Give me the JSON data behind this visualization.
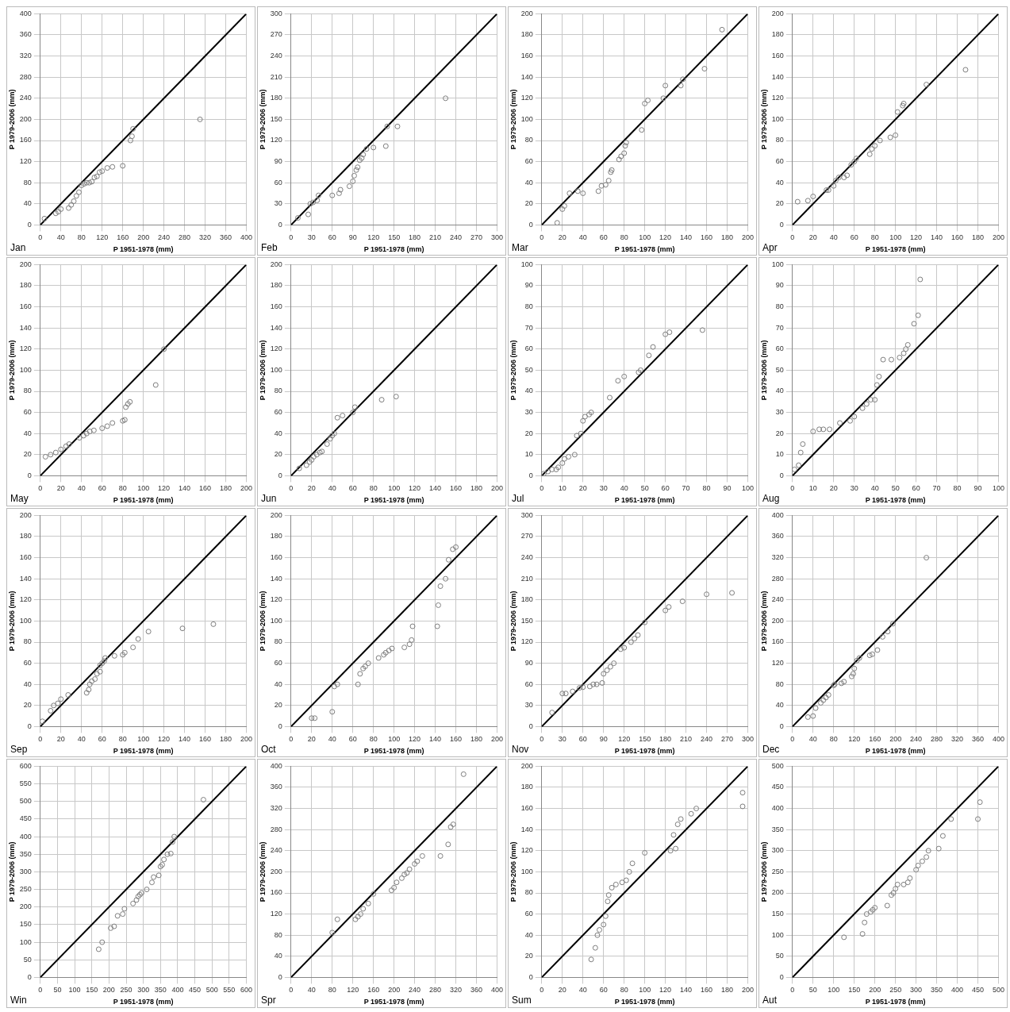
{
  "chart_data": [
    {
      "type": "scatter",
      "annotations": [
        "Jan"
      ],
      "xlabel": "P 1951-1978 (mm)",
      "ylabel": "P 1979-2006 (mm)",
      "xlim": [
        0,
        400
      ],
      "ylim": [
        0,
        400
      ],
      "xticks": [
        0,
        40,
        80,
        120,
        160,
        200,
        240,
        280,
        320,
        360,
        400
      ],
      "yticks": [
        0,
        40,
        80,
        120,
        160,
        200,
        240,
        280,
        320,
        360,
        400
      ],
      "grid": true,
      "marker": "circle",
      "series": [
        {
          "color": "#7f7f7f",
          "x": [
            8,
            30,
            35,
            40,
            55,
            60,
            65,
            70,
            75,
            80,
            85,
            90,
            95,
            100,
            105,
            110,
            115,
            120,
            130,
            140,
            160,
            175,
            178,
            180,
            310
          ],
          "values": [
            12,
            22,
            25,
            30,
            32,
            38,
            45,
            55,
            62,
            75,
            78,
            80,
            80,
            82,
            90,
            92,
            100,
            102,
            108,
            110,
            112,
            160,
            168,
            182,
            200
          ]
        },
        {
          "type": "line",
          "marker": "none",
          "color": "#000000",
          "x": [
            0,
            400
          ],
          "values": [
            0,
            400
          ]
        }
      ]
    },
    {
      "type": "scatter",
      "annotations": [
        "Feb"
      ],
      "xlabel": "P 1951-1978 (mm)",
      "ylabel": "P 1979-2006 (mm)",
      "xlim": [
        0,
        300
      ],
      "ylim": [
        0,
        300
      ],
      "xticks": [
        0,
        30,
        60,
        90,
        120,
        150,
        180,
        210,
        240,
        270,
        300
      ],
      "yticks": [
        0,
        30,
        60,
        90,
        120,
        150,
        180,
        210,
        240,
        270,
        300
      ],
      "grid": true,
      "marker": "circle",
      "series": [
        {
          "color": "#7f7f7f",
          "x": [
            10,
            25,
            28,
            32,
            38,
            40,
            60,
            70,
            72,
            85,
            90,
            92,
            95,
            97,
            100,
            103,
            105,
            110,
            120,
            138,
            140,
            155,
            225
          ],
          "values": [
            10,
            15,
            30,
            32,
            35,
            42,
            42,
            45,
            50,
            55,
            62,
            70,
            78,
            82,
            92,
            95,
            100,
            108,
            110,
            112,
            140,
            140,
            180
          ]
        },
        {
          "type": "line",
          "marker": "none",
          "color": "#000000",
          "x": [
            0,
            300
          ],
          "values": [
            0,
            300
          ]
        }
      ]
    },
    {
      "type": "scatter",
      "annotations": [
        "Mar"
      ],
      "xlabel": "P 1951-1978 (mm)",
      "ylabel": "P 1979-2006 (mm)",
      "xlim": [
        0,
        200
      ],
      "ylim": [
        0,
        200
      ],
      "xticks": [
        0,
        20,
        40,
        60,
        80,
        100,
        120,
        140,
        160,
        180,
        200
      ],
      "yticks": [
        0,
        20,
        40,
        60,
        80,
        100,
        120,
        140,
        160,
        180,
        200
      ],
      "grid": true,
      "marker": "circle",
      "series": [
        {
          "color": "#7f7f7f",
          "x": [
            15,
            20,
            22,
            27,
            35,
            40,
            55,
            58,
            62,
            65,
            67,
            68,
            75,
            77,
            80,
            81,
            82,
            97,
            100,
            103,
            118,
            120,
            135,
            137,
            158,
            175
          ],
          "values": [
            2,
            15,
            18,
            30,
            32,
            30,
            32,
            37,
            38,
            42,
            50,
            52,
            62,
            65,
            68,
            75,
            78,
            90,
            115,
            118,
            120,
            132,
            132,
            138,
            148,
            185
          ]
        },
        {
          "type": "line",
          "marker": "none",
          "color": "#000000",
          "x": [
            0,
            200
          ],
          "values": [
            0,
            200
          ]
        }
      ]
    },
    {
      "type": "scatter",
      "annotations": [
        "Apr"
      ],
      "xlabel": "P 1951-1978 (mm)",
      "ylabel": "P 1979-2006 (mm)",
      "xlim": [
        0,
        200
      ],
      "ylim": [
        0,
        200
      ],
      "xticks": [
        0,
        20,
        40,
        60,
        80,
        100,
        120,
        140,
        160,
        180,
        200
      ],
      "yticks": [
        0,
        20,
        40,
        60,
        80,
        100,
        120,
        140,
        160,
        180,
        200
      ],
      "grid": true,
      "marker": "circle",
      "series": [
        {
          "color": "#7f7f7f",
          "x": [
            5,
            15,
            20,
            33,
            35,
            40,
            42,
            45,
            50,
            53,
            57,
            60,
            62,
            75,
            77,
            80,
            85,
            95,
            100,
            102,
            107,
            108,
            130,
            168
          ],
          "values": [
            22,
            23,
            27,
            33,
            33,
            37,
            42,
            45,
            45,
            47,
            57,
            60,
            63,
            67,
            72,
            75,
            80,
            83,
            85,
            107,
            113,
            115,
            133,
            147
          ]
        },
        {
          "type": "line",
          "marker": "none",
          "color": "#000000",
          "x": [
            0,
            200
          ],
          "values": [
            0,
            200
          ]
        }
      ]
    },
    {
      "type": "scatter",
      "annotations": [
        "May"
      ],
      "xlabel": "P 1951-1978 (mm)",
      "ylabel": "P 1979-2006 (mm)",
      "xlim": [
        0,
        200
      ],
      "ylim": [
        0,
        200
      ],
      "xticks": [
        0,
        20,
        40,
        60,
        80,
        100,
        120,
        140,
        160,
        180,
        200
      ],
      "yticks": [
        0,
        20,
        40,
        60,
        80,
        100,
        120,
        140,
        160,
        180,
        200
      ],
      "grid": true,
      "marker": "circle",
      "series": [
        {
          "color": "#7f7f7f",
          "x": [
            5,
            10,
            15,
            20,
            25,
            28,
            38,
            42,
            45,
            48,
            52,
            60,
            65,
            70,
            80,
            82,
            83,
            85,
            87,
            112,
            120
          ],
          "values": [
            18,
            20,
            22,
            25,
            28,
            30,
            36,
            38,
            40,
            42,
            43,
            45,
            47,
            50,
            52,
            53,
            65,
            68,
            70,
            86,
            120
          ]
        },
        {
          "type": "line",
          "marker": "none",
          "color": "#000000",
          "x": [
            0,
            200
          ],
          "values": [
            0,
            200
          ]
        }
      ]
    },
    {
      "type": "scatter",
      "annotations": [
        "Jun"
      ],
      "xlabel": "P 1951-1978 (mm)",
      "ylabel": "P 1979-2006 (mm)",
      "xlim": [
        0,
        200
      ],
      "ylim": [
        0,
        200
      ],
      "xticks": [
        0,
        20,
        40,
        60,
        80,
        100,
        120,
        140,
        160,
        180,
        200
      ],
      "yticks": [
        0,
        20,
        40,
        60,
        80,
        100,
        120,
        140,
        160,
        180,
        200
      ],
      "grid": true,
      "marker": "circle",
      "series": [
        {
          "color": "#7f7f7f",
          "x": [
            8,
            15,
            18,
            20,
            22,
            25,
            28,
            30,
            35,
            38,
            40,
            42,
            45,
            50,
            60,
            62,
            88,
            102
          ],
          "values": [
            7,
            10,
            13,
            15,
            18,
            20,
            22,
            23,
            30,
            35,
            38,
            40,
            55,
            57,
            60,
            65,
            72,
            75
          ]
        },
        {
          "type": "line",
          "marker": "none",
          "color": "#000000",
          "x": [
            0,
            200
          ],
          "values": [
            0,
            200
          ]
        }
      ]
    },
    {
      "type": "scatter",
      "annotations": [
        "Jul"
      ],
      "xlabel": "P 1951-1978 (mm)",
      "ylabel": "P 1979-2006 (mm)",
      "xlim": [
        0,
        100
      ],
      "ylim": [
        0,
        100
      ],
      "xticks": [
        0,
        10,
        20,
        30,
        40,
        50,
        60,
        70,
        80,
        90,
        100
      ],
      "yticks": [
        0,
        10,
        20,
        30,
        40,
        50,
        60,
        70,
        80,
        90,
        100
      ],
      "grid": true,
      "marker": "circle",
      "series": [
        {
          "color": "#7f7f7f",
          "x": [
            1,
            3,
            5,
            7,
            8,
            10,
            11,
            13,
            16,
            17,
            19,
            20,
            21,
            23,
            24,
            33,
            37,
            40,
            47,
            48,
            52,
            54,
            60,
            62,
            78
          ],
          "values": [
            1,
            2,
            3,
            3,
            4,
            6,
            8,
            9,
            10,
            19,
            20,
            26,
            28,
            29,
            30,
            37,
            45,
            47,
            49,
            50,
            57,
            61,
            67,
            68,
            69
          ]
        },
        {
          "type": "line",
          "marker": "none",
          "color": "#000000",
          "x": [
            0,
            100
          ],
          "values": [
            0,
            100
          ]
        }
      ]
    },
    {
      "type": "scatter",
      "annotations": [
        "Aug"
      ],
      "xlabel": "P 1951-1978 (mm)",
      "ylabel": "P 1979-2006 (mm)",
      "xlim": [
        0,
        100
      ],
      "ylim": [
        0,
        100
      ],
      "xticks": [
        0,
        10,
        20,
        30,
        40,
        50,
        60,
        70,
        80,
        90,
        100
      ],
      "yticks": [
        0,
        10,
        20,
        30,
        40,
        50,
        60,
        70,
        80,
        90,
        100
      ],
      "grid": true,
      "marker": "circle",
      "series": [
        {
          "color": "#7f7f7f",
          "x": [
            1,
            3,
            4,
            5,
            10,
            13,
            15,
            18,
            23,
            28,
            30,
            34,
            36,
            38,
            40,
            41,
            42,
            44,
            48,
            52,
            54,
            55,
            56,
            59,
            61,
            62
          ],
          "values": [
            3,
            5,
            11,
            15,
            21,
            22,
            22,
            22,
            25,
            26,
            28,
            32,
            34,
            36,
            36,
            43,
            47,
            55,
            55,
            56,
            58,
            60,
            62,
            72,
            76,
            93
          ]
        },
        {
          "type": "line",
          "marker": "none",
          "color": "#000000",
          "x": [
            0,
            100
          ],
          "values": [
            0,
            100
          ]
        }
      ]
    },
    {
      "type": "scatter",
      "annotations": [
        "Sep"
      ],
      "xlabel": "P 1951-1978 (mm)",
      "ylabel": "P 1979-2006 (mm)",
      "xlim": [
        0,
        200
      ],
      "ylim": [
        0,
        200
      ],
      "xticks": [
        0,
        20,
        40,
        60,
        80,
        100,
        120,
        140,
        160,
        180,
        200
      ],
      "yticks": [
        0,
        20,
        40,
        60,
        80,
        100,
        120,
        140,
        160,
        180,
        200
      ],
      "grid": true,
      "marker": "circle",
      "series": [
        {
          "color": "#7f7f7f",
          "x": [
            2,
            10,
            13,
            17,
            20,
            27,
            45,
            47,
            48,
            50,
            53,
            55,
            58,
            58,
            60,
            62,
            63,
            72,
            80,
            82,
            90,
            95,
            105,
            138,
            168
          ],
          "values": [
            5,
            15,
            20,
            22,
            26,
            30,
            32,
            35,
            40,
            43,
            45,
            50,
            52,
            58,
            60,
            62,
            65,
            67,
            68,
            70,
            75,
            83,
            90,
            93,
            97
          ]
        },
        {
          "type": "line",
          "marker": "none",
          "color": "#000000",
          "x": [
            0,
            200
          ],
          "values": [
            0,
            200
          ]
        }
      ]
    },
    {
      "type": "scatter",
      "annotations": [
        "Oct"
      ],
      "xlabel": "P 1951-1978 (mm)",
      "ylabel": "P 1979-2006 (mm)",
      "xlim": [
        0,
        200
      ],
      "ylim": [
        0,
        200
      ],
      "xticks": [
        0,
        20,
        40,
        60,
        80,
        100,
        120,
        140,
        160,
        180,
        200
      ],
      "yticks": [
        0,
        20,
        40,
        60,
        80,
        100,
        120,
        140,
        160,
        180,
        200
      ],
      "grid": true,
      "marker": "circle",
      "series": [
        {
          "color": "#7f7f7f",
          "x": [
            20,
            23,
            40,
            42,
            45,
            65,
            67,
            70,
            72,
            75,
            85,
            90,
            92,
            95,
            98,
            110,
            115,
            117,
            118,
            142,
            143,
            145,
            150,
            153,
            157,
            160
          ],
          "values": [
            8,
            8,
            14,
            38,
            40,
            40,
            50,
            55,
            57,
            60,
            65,
            68,
            70,
            72,
            74,
            75,
            78,
            82,
            95,
            95,
            115,
            133,
            140,
            158,
            168,
            170
          ]
        },
        {
          "type": "line",
          "marker": "none",
          "color": "#000000",
          "x": [
            0,
            200
          ],
          "values": [
            0,
            200
          ]
        }
      ]
    },
    {
      "type": "scatter",
      "annotations": [
        "Nov"
      ],
      "xlabel": "P 1951-1978 (mm)",
      "ylabel": "P 1979-2006 (mm)",
      "xlim": [
        0,
        300
      ],
      "ylim": [
        0,
        300
      ],
      "xticks": [
        0,
        30,
        60,
        90,
        120,
        150,
        180,
        210,
        240,
        270,
        300
      ],
      "yticks": [
        0,
        30,
        60,
        90,
        120,
        150,
        180,
        210,
        240,
        270,
        300
      ],
      "grid": true,
      "marker": "circle",
      "series": [
        {
          "color": "#7f7f7f",
          "x": [
            15,
            30,
            35,
            45,
            55,
            60,
            70,
            75,
            80,
            88,
            90,
            95,
            100,
            105,
            115,
            120,
            130,
            135,
            140,
            150,
            180,
            185,
            205,
            240,
            277
          ],
          "values": [
            20,
            47,
            47,
            50,
            55,
            56,
            57,
            60,
            60,
            62,
            75,
            80,
            85,
            90,
            110,
            112,
            120,
            125,
            130,
            148,
            165,
            170,
            178,
            188,
            190
          ]
        },
        {
          "type": "line",
          "marker": "none",
          "color": "#000000",
          "x": [
            0,
            300
          ],
          "values": [
            0,
            300
          ]
        }
      ]
    },
    {
      "type": "scatter",
      "annotations": [
        "Dec"
      ],
      "xlabel": "P 1951-1978 (mm)",
      "ylabel": "P 1979-2006 (mm)",
      "xlim": [
        0,
        400
      ],
      "ylim": [
        0,
        400
      ],
      "xticks": [
        0,
        40,
        80,
        120,
        160,
        200,
        240,
        280,
        320,
        360,
        400
      ],
      "yticks": [
        0,
        40,
        80,
        120,
        160,
        200,
        240,
        280,
        320,
        360,
        400
      ],
      "grid": true,
      "marker": "circle",
      "series": [
        {
          "color": "#7f7f7f",
          "x": [
            30,
            40,
            45,
            55,
            60,
            65,
            70,
            80,
            82,
            95,
            100,
            115,
            118,
            120,
            125,
            130,
            150,
            155,
            165,
            175,
            185,
            195,
            260
          ],
          "values": [
            18,
            20,
            35,
            45,
            50,
            55,
            60,
            78,
            80,
            82,
            85,
            95,
            100,
            110,
            125,
            130,
            135,
            137,
            145,
            170,
            180,
            195,
            320
          ]
        },
        {
          "type": "line",
          "marker": "none",
          "color": "#000000",
          "x": [
            0,
            400
          ],
          "values": [
            0,
            400
          ]
        }
      ]
    },
    {
      "type": "scatter",
      "annotations": [
        "Win"
      ],
      "xlabel": "P 1951-1978 (mm)",
      "ylabel": "P 1979-2006 (mm)",
      "xlim": [
        0,
        600
      ],
      "ylim": [
        0,
        600
      ],
      "xticks": [
        0,
        50,
        100,
        150,
        200,
        250,
        300,
        350,
        400,
        450,
        500,
        550,
        600
      ],
      "yticks": [
        0,
        50,
        100,
        150,
        200,
        250,
        300,
        350,
        400,
        450,
        500,
        550,
        600
      ],
      "grid": true,
      "marker": "circle",
      "series": [
        {
          "color": "#7f7f7f",
          "x": [
            170,
            180,
            205,
            215,
            225,
            240,
            245,
            270,
            280,
            285,
            290,
            295,
            310,
            325,
            330,
            345,
            350,
            355,
            360,
            370,
            380,
            385,
            390,
            475
          ],
          "values": [
            80,
            100,
            140,
            145,
            175,
            180,
            195,
            210,
            220,
            230,
            235,
            240,
            250,
            270,
            285,
            290,
            315,
            320,
            335,
            350,
            352,
            385,
            400,
            505
          ]
        },
        {
          "type": "line",
          "marker": "none",
          "color": "#000000",
          "x": [
            0,
            600
          ],
          "values": [
            0,
            600
          ]
        }
      ]
    },
    {
      "type": "scatter",
      "annotations": [
        "Spr"
      ],
      "xlabel": "P 1951-1978 (mm)",
      "ylabel": "P 1979-2006 (mm)",
      "xlim": [
        0,
        400
      ],
      "ylim": [
        0,
        400
      ],
      "xticks": [
        0,
        40,
        80,
        120,
        160,
        200,
        240,
        280,
        320,
        360,
        400
      ],
      "yticks": [
        0,
        40,
        80,
        120,
        160,
        200,
        240,
        280,
        320,
        360,
        400
      ],
      "grid": true,
      "marker": "circle",
      "series": [
        {
          "color": "#7f7f7f",
          "x": [
            80,
            90,
            125,
            130,
            135,
            140,
            150,
            160,
            195,
            200,
            205,
            215,
            220,
            225,
            230,
            240,
            245,
            255,
            290,
            305,
            310,
            315,
            335
          ],
          "values": [
            85,
            110,
            110,
            115,
            120,
            130,
            140,
            158,
            165,
            170,
            180,
            188,
            195,
            198,
            205,
            215,
            220,
            230,
            230,
            252,
            285,
            290,
            385
          ]
        },
        {
          "type": "line",
          "marker": "none",
          "color": "#000000",
          "x": [
            0,
            400
          ],
          "values": [
            0,
            400
          ]
        }
      ]
    },
    {
      "type": "scatter",
      "annotations": [
        "Sum"
      ],
      "xlabel": "P 1951-1978 (mm)",
      "ylabel": "P 1979-2006 (mm)",
      "xlim": [
        0,
        200
      ],
      "ylim": [
        0,
        200
      ],
      "xticks": [
        0,
        20,
        40,
        60,
        80,
        100,
        120,
        140,
        160,
        180,
        200
      ],
      "yticks": [
        0,
        20,
        40,
        60,
        80,
        100,
        120,
        140,
        160,
        180,
        200
      ],
      "grid": true,
      "marker": "circle",
      "series": [
        {
          "color": "#7f7f7f",
          "x": [
            48,
            52,
            54,
            56,
            60,
            62,
            64,
            65,
            68,
            72,
            78,
            82,
            85,
            88,
            100,
            125,
            130,
            128,
            132,
            135,
            145,
            150,
            195,
            195
          ],
          "values": [
            17,
            28,
            40,
            45,
            50,
            58,
            72,
            78,
            85,
            88,
            90,
            92,
            100,
            108,
            118,
            120,
            122,
            135,
            145,
            150,
            155,
            160,
            162,
            175
          ]
        },
        {
          "type": "line",
          "marker": "none",
          "color": "#000000",
          "x": [
            0,
            200
          ],
          "values": [
            0,
            200
          ]
        }
      ]
    },
    {
      "type": "scatter",
      "annotations": [
        "Aut"
      ],
      "xlabel": "P 1951-1978 (mm)",
      "ylabel": "P 1979-2006 (mm)",
      "xlim": [
        0,
        500
      ],
      "ylim": [
        0,
        500
      ],
      "xticks": [
        0,
        50,
        100,
        150,
        200,
        250,
        300,
        350,
        400,
        450,
        500
      ],
      "yticks": [
        0,
        50,
        100,
        150,
        200,
        250,
        300,
        350,
        400,
        450,
        500
      ],
      "grid": true,
      "marker": "circle",
      "series": [
        {
          "color": "#7f7f7f",
          "x": [
            125,
            170,
            175,
            180,
            190,
            195,
            200,
            230,
            240,
            245,
            250,
            255,
            270,
            280,
            285,
            300,
            305,
            315,
            325,
            330,
            355,
            365,
            385,
            450,
            455
          ],
          "values": [
            95,
            103,
            130,
            150,
            155,
            160,
            165,
            170,
            195,
            200,
            210,
            220,
            220,
            225,
            235,
            255,
            265,
            275,
            285,
            300,
            305,
            335,
            375,
            375,
            415
          ]
        },
        {
          "type": "line",
          "marker": "none",
          "color": "#000000",
          "x": [
            0,
            500
          ],
          "values": [
            0,
            500
          ]
        }
      ]
    }
  ]
}
